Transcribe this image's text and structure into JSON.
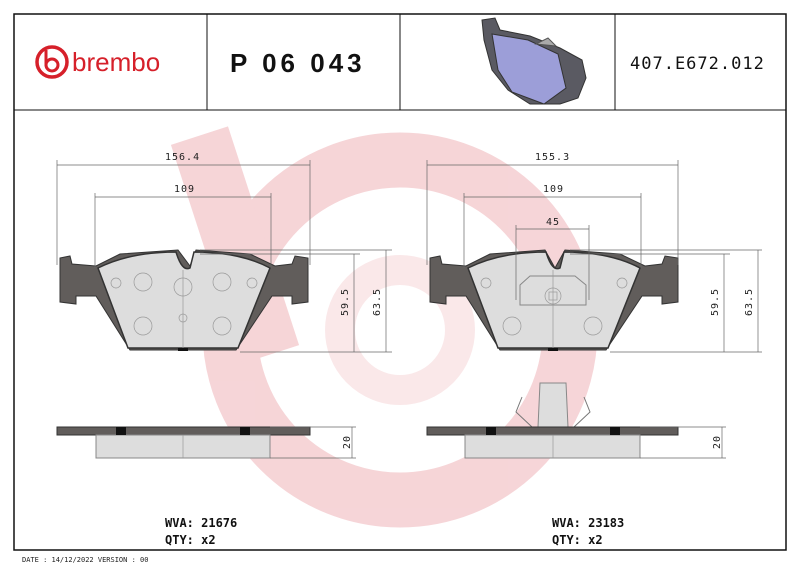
{
  "header": {
    "brand": "brembo",
    "part_number": "P 06 043",
    "reference": "407.E672.012"
  },
  "left_pad": {
    "width_overall": "156.4",
    "width_inner": "109",
    "height_inner": "59.5",
    "height_overall": "63.5",
    "thickness": "20",
    "wva": "WVA: 21676",
    "qty": "QTY: x2"
  },
  "right_pad": {
    "width_overall": "155.3",
    "width_inner": "109",
    "width_center": "45",
    "height_inner": "59.5",
    "height_overall": "63.5",
    "thickness": "20",
    "wva": "WVA: 23183",
    "qty": "QTY: x2"
  },
  "footer": {
    "date_version": "DATE : 14/12/2022 VERSION : 00"
  },
  "colors": {
    "brand": "#d6202a",
    "watermark": "#f3c9cc",
    "pad_preview": "#9c9ed8"
  }
}
